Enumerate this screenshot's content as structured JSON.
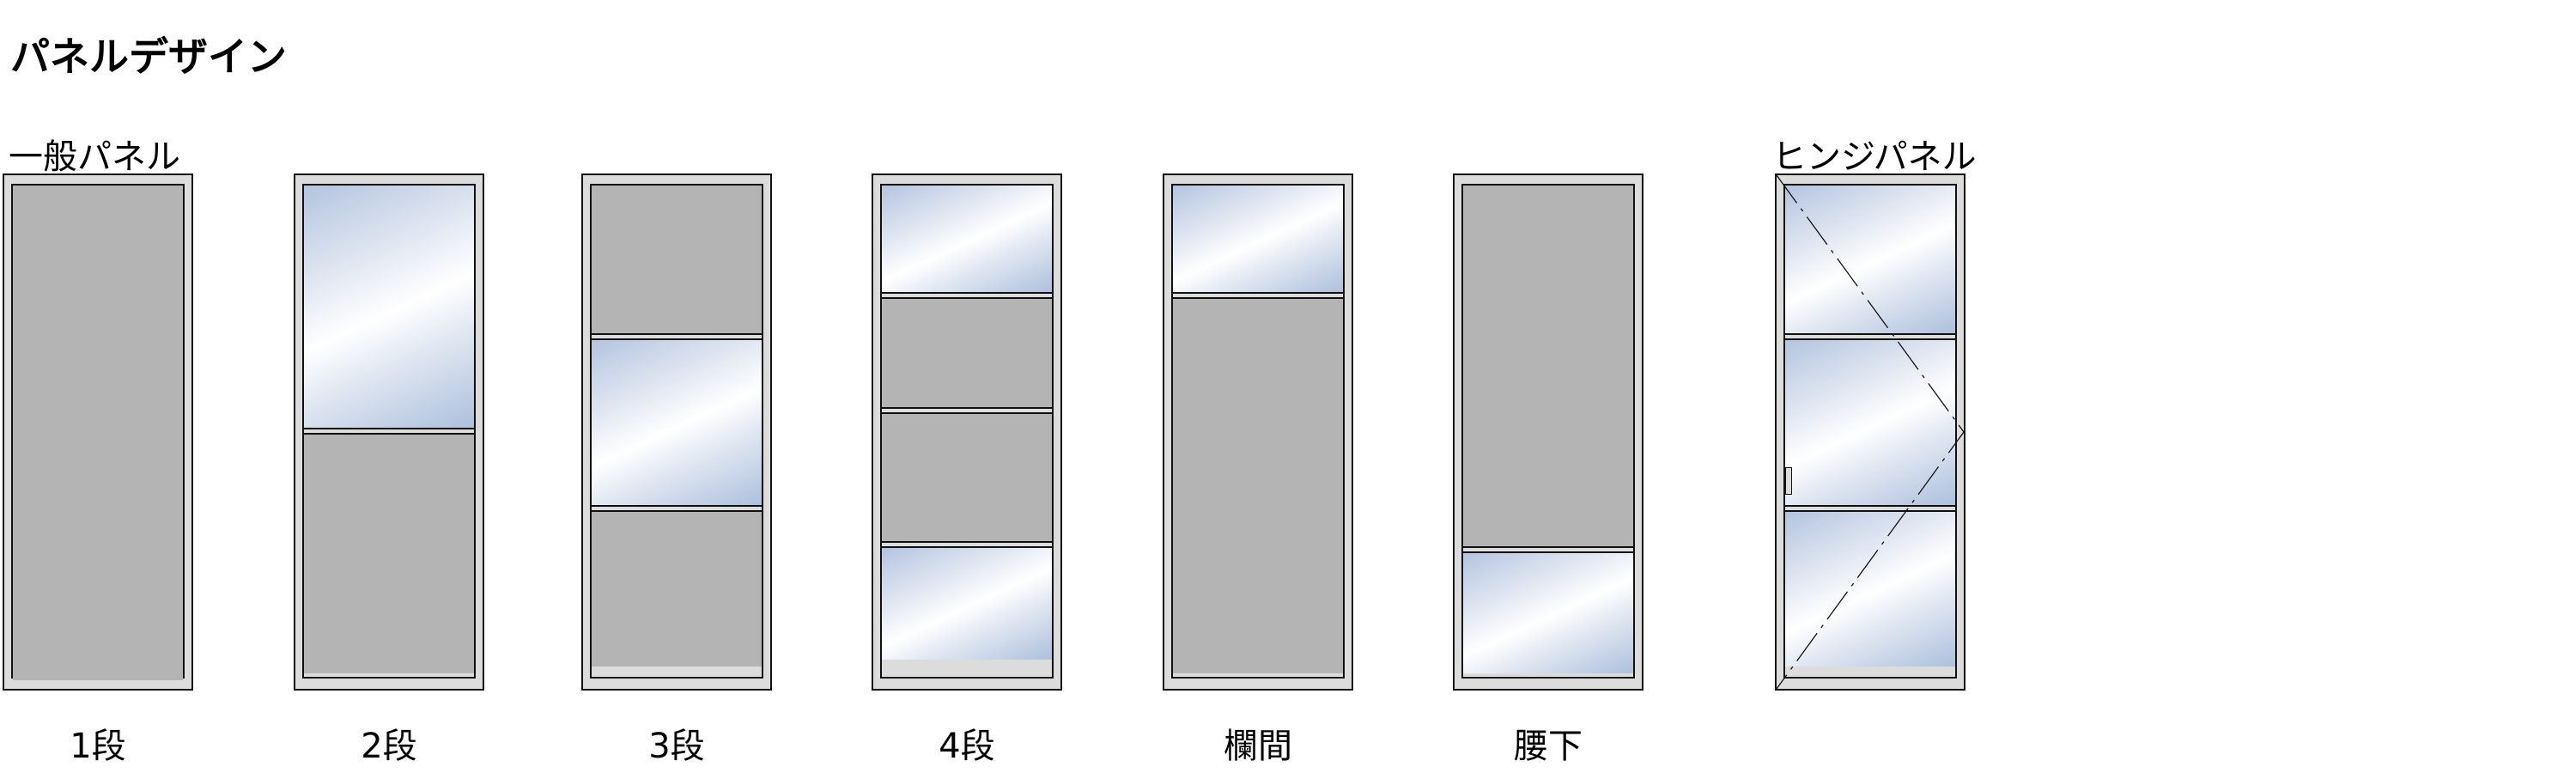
{
  "title": "パネルデザイン",
  "groups": {
    "general": "一般パネル",
    "hinge": "ヒンジパネル"
  },
  "panels": [
    {
      "label": "1段",
      "sections": [
        "solid"
      ]
    },
    {
      "label": "2段",
      "sections": [
        "glass",
        "solid"
      ]
    },
    {
      "label": "3段",
      "sections": [
        "solid",
        "glass",
        "solid"
      ]
    },
    {
      "label": "4段",
      "sections": [
        "glass",
        "solid",
        "solid",
        "glass"
      ]
    },
    {
      "label": "欄間",
      "sections": [
        "glass",
        "solid"
      ]
    },
    {
      "label": "腰下",
      "sections": [
        "solid",
        "glass"
      ]
    },
    {
      "label": "",
      "sections": [
        "glass",
        "glass",
        "glass"
      ],
      "hinge": true
    }
  ],
  "colors": {
    "frame": "#dcdcdc",
    "solid": "#b4b4b4",
    "glass": "#b3c4df",
    "line": "#111111"
  }
}
